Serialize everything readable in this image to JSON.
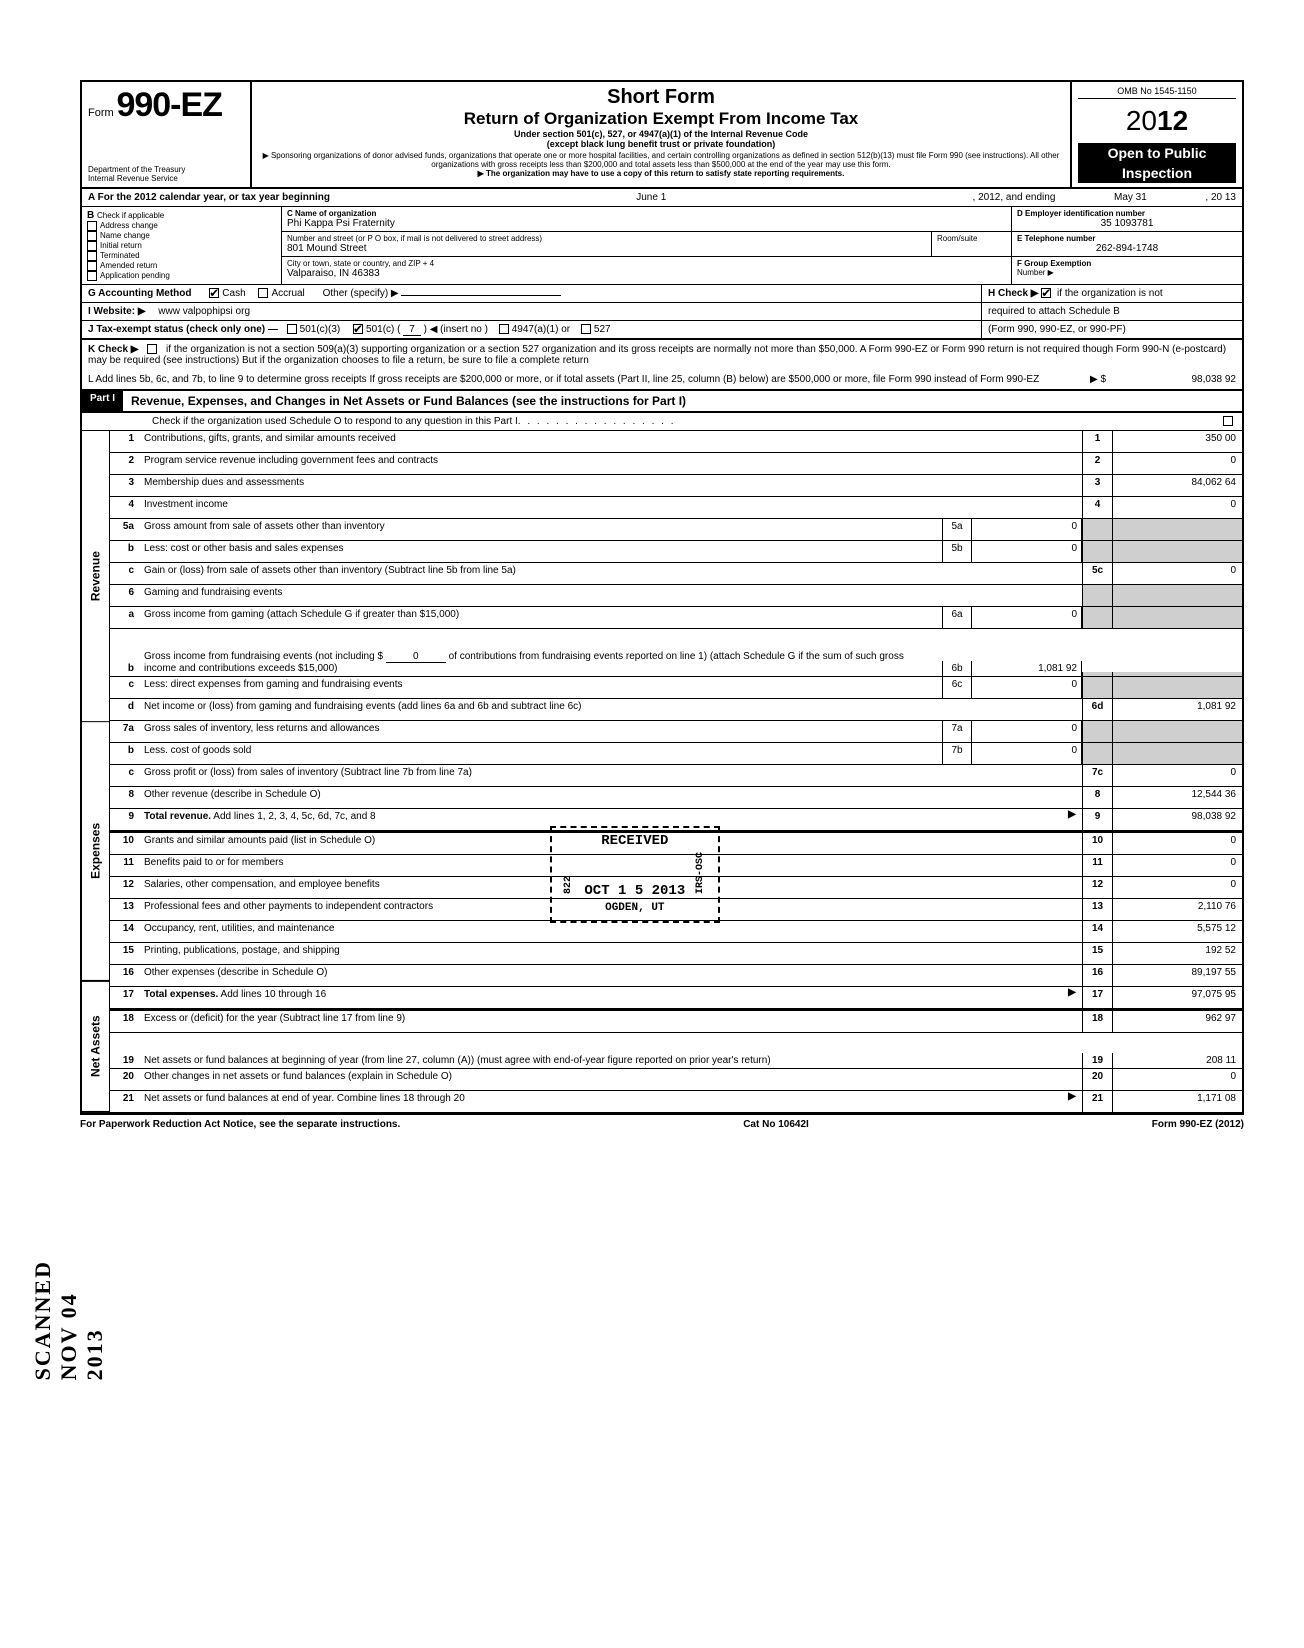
{
  "header": {
    "form_label": "Form",
    "form_number": "990-EZ",
    "dept": "Department of the Treasury",
    "irs": "Internal Revenue Service",
    "title1": "Short Form",
    "title2": "Return of Organization Exempt From Income Tax",
    "sub1": "Under section 501(c), 527, or 4947(a)(1) of the Internal Revenue Code",
    "sub2": "(except black lung benefit trust or private foundation)",
    "sub3": "▶ Sponsoring organizations of donor advised funds, organizations that operate one or more hospital facilities, and certain controlling organizations as defined in section 512(b)(13) must file Form 990 (see instructions). All other organizations with gross receipts less than $200,000 and total assets less than $500,000 at the end of the year may use this form.",
    "sub4": "▶ The organization may have to use a copy of this return to satisfy state reporting requirements.",
    "omb": "OMB No  1545-1150",
    "year_prefix": "20",
    "year_bold": "12",
    "open": "Open to Public",
    "inspection": "Inspection"
  },
  "A": {
    "label": "A  For the 2012 calendar year, or tax year beginning",
    "begin": "June 1",
    "mid": ", 2012, and ending",
    "end": "May 31",
    "end2": ", 20    13"
  },
  "B": {
    "label": "B",
    "check_if": "Check if applicable",
    "addr_change": "Address change",
    "name_change": "Name change",
    "initial": "Initial return",
    "terminated": "Terminated",
    "amended": "Amended return",
    "pending": "Application pending"
  },
  "C": {
    "label": "C  Name of organization",
    "name": "Phi Kappa Psi Fraternity",
    "street_label": "Number and street (or P O  box, if mail is not delivered to street address)",
    "street": "801 Mound Street",
    "room_label": "Room/suite",
    "city_label": "City or town, state or country, and ZIP + 4",
    "city": "Valparaiso, IN  46383"
  },
  "D": {
    "label": "D Employer identification number",
    "value": "35 1093781"
  },
  "E": {
    "label": "E  Telephone number",
    "value": "262-894-1748"
  },
  "F": {
    "label": "F  Group Exemption",
    "label2": "Number ▶"
  },
  "G": {
    "label": "G  Accounting Method",
    "cash": "Cash",
    "accrual": "Accrual",
    "other": "Other (specify) ▶"
  },
  "H": {
    "label": "H  Check ▶",
    "text": "if the organization is not",
    "text2": "required to attach Schedule B",
    "text3": "(Form 990, 990-EZ, or 990-PF)"
  },
  "I": {
    "label": "I   Website: ▶",
    "value": "www valpophipsi org"
  },
  "J": {
    "label": "J  Tax-exempt status (check only one) —",
    "c3": "501(c)(3)",
    "c": "501(c) (",
    "cnum": "7",
    "cins": ") ◀ (insert no )",
    "a1": "4947(a)(1) or",
    "s527": "527"
  },
  "K": {
    "label": "K  Check ▶",
    "text": "if the organization is not a section 509(a)(3) supporting organization or a section 527 organization and its gross receipts are normally not more than $50,000. A Form 990-EZ or Form 990 return is not required though Form 990-N (e-postcard) may be required (see instructions)  But if the organization chooses to file a return, be sure to file a complete return"
  },
  "L": {
    "text": "L  Add lines 5b, 6c, and 7b, to line 9 to determine gross receipts  If gross receipts are $200,000 or more, or if total assets (Part II, line 25, column (B) below) are $500,000 or more, file Form 990 instead of Form 990-EZ",
    "arrow": "▶  $",
    "value": "98,038 92"
  },
  "part1": {
    "tab": "Part I",
    "title": "Revenue, Expenses, and Changes in Net Assets or Fund Balances (see the instructions for Part I)",
    "scho": "Check if the organization used Schedule O to respond to any question in this Part I"
  },
  "side": {
    "rev": "Revenue",
    "exp": "Expenses",
    "net": "Net Assets"
  },
  "lines": {
    "l1": {
      "n": "1",
      "d": "Contributions, gifts, grants, and similar amounts received",
      "a": "350 00"
    },
    "l2": {
      "n": "2",
      "d": "Program service revenue including government fees and contracts",
      "a": "0"
    },
    "l3": {
      "n": "3",
      "d": "Membership dues and assessments",
      "a": "84,062 64"
    },
    "l4": {
      "n": "4",
      "d": "Investment income",
      "a": "0"
    },
    "l5a": {
      "n": "5a",
      "d": "Gross amount from sale of assets other than inventory",
      "ib": "5a",
      "iv": "0"
    },
    "l5b": {
      "n": "b",
      "d": "Less: cost or other basis and sales expenses",
      "ib": "5b",
      "iv": "0"
    },
    "l5c": {
      "n": "c",
      "d": "Gain or (loss) from sale of assets other than inventory (Subtract line 5b from line 5a)",
      "nc": "5c",
      "a": "0"
    },
    "l6": {
      "n": "6",
      "d": "Gaming and fundraising events"
    },
    "l6a": {
      "n": "a",
      "d": "Gross income from gaming (attach Schedule G if greater than $15,000)",
      "ib": "6a",
      "iv": "0"
    },
    "l6b": {
      "n": "b",
      "d": "Gross income from fundraising events (not including  $",
      "d2": "of contributions from fundraising events reported on line 1) (attach Schedule G if the sum of such gross income and contributions exceeds $15,000)",
      "d2b": "0",
      "ib": "6b",
      "iv": "1,081 92"
    },
    "l6c": {
      "n": "c",
      "d": "Less: direct expenses from gaming and fundraising events",
      "ib": "6c",
      "iv": "0"
    },
    "l6d": {
      "n": "d",
      "d": "Net income or (loss) from gaming and fundraising events (add lines 6a and 6b and subtract line 6c)",
      "nc": "6d",
      "a": "1,081 92"
    },
    "l7a": {
      "n": "7a",
      "d": "Gross sales of inventory, less returns and allowances",
      "ib": "7a",
      "iv": "0"
    },
    "l7b": {
      "n": "b",
      "d": "Less. cost of goods sold",
      "ib": "7b",
      "iv": "0"
    },
    "l7c": {
      "n": "c",
      "d": "Gross profit or (loss) from sales of inventory (Subtract line 7b from line 7a)",
      "nc": "7c",
      "a": "0"
    },
    "l8": {
      "n": "8",
      "d": "Other revenue (describe in Schedule O)",
      "a": "12,544 36"
    },
    "l9": {
      "n": "9",
      "d": "Total revenue. Add lines 1, 2, 3, 4, 5c, 6d, 7c, and 8",
      "a": "98,038 92"
    },
    "l10": {
      "n": "10",
      "d": "Grants and similar amounts paid (list in Schedule O)",
      "a": "0"
    },
    "l11": {
      "n": "11",
      "d": "Benefits paid to or for members",
      "a": "0"
    },
    "l12": {
      "n": "12",
      "d": "Salaries, other compensation, and employee benefits",
      "a": "0"
    },
    "l13": {
      "n": "13",
      "d": "Professional fees and other payments to independent contractors",
      "a": "2,110 76"
    },
    "l14": {
      "n": "14",
      "d": "Occupancy, rent, utilities, and maintenance",
      "a": "5,575 12"
    },
    "l15": {
      "n": "15",
      "d": "Printing, publications, postage, and shipping",
      "a": "192 52"
    },
    "l16": {
      "n": "16",
      "d": "Other expenses (describe in Schedule O)",
      "a": "89,197 55"
    },
    "l17": {
      "n": "17",
      "d": "Total expenses. Add lines 10 through 16",
      "a": "97,075 95"
    },
    "l18": {
      "n": "18",
      "d": "Excess or (deficit) for the year (Subtract line 17 from line 9)",
      "a": "962 97"
    },
    "l19": {
      "n": "19",
      "d": "Net assets or fund balances at beginning of year (from line 27, column (A)) (must agree with end-of-year figure reported on prior year's return)",
      "nc": "19",
      "a": "208 11"
    },
    "l20": {
      "n": "20",
      "d": "Other changes in net assets or fund balances (explain in Schedule O)",
      "a": "0"
    },
    "l21": {
      "n": "21",
      "d": "Net assets or fund balances at end of year. Combine lines 18 through 20",
      "a": "1,171 08"
    }
  },
  "stamps": {
    "received": "RECEIVED",
    "date": "OCT 1 5 2013",
    "code": "822",
    "ogden": "OGDEN, UT",
    "irsosc": "IRS-OSC",
    "scanned": "SCANNED  NOV 04 2013"
  },
  "footer": {
    "left": "For Paperwork Reduction Act Notice, see the separate instructions.",
    "mid": "Cat  No  10642I",
    "right": "Form 990-EZ (2012)"
  }
}
